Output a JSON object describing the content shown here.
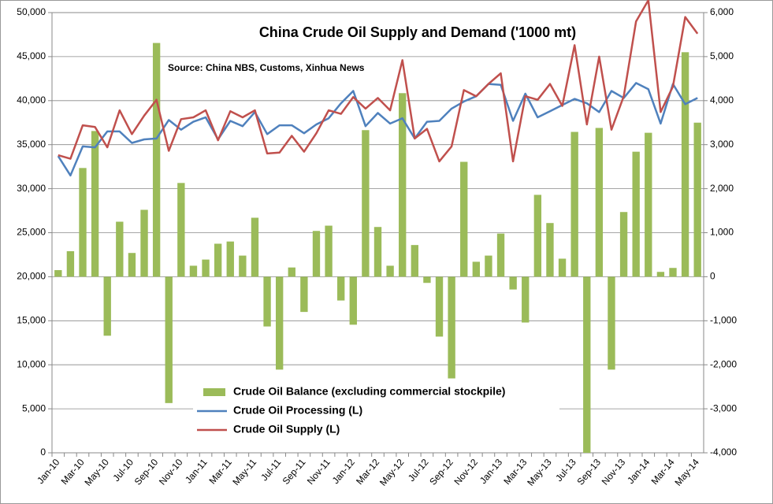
{
  "chart_data": {
    "type": "combo",
    "title": "China Crude Oil Supply and Demand ('1000 mt)",
    "annotation": "Source: China NBS, Customs, Xinhua News",
    "categories": [
      "Jan-10",
      null,
      "Mar-10",
      null,
      "May-10",
      null,
      "Jul-10",
      null,
      "Sep-10",
      null,
      "Nov-10",
      null,
      "Jan-11",
      null,
      "Mar-11",
      null,
      "May-11",
      null,
      "Jul-11",
      null,
      "Sep-11",
      null,
      "Nov-11",
      null,
      "Jan-12",
      null,
      "Mar-12",
      null,
      "May-12",
      null,
      "Jul-12",
      null,
      "Sep-12",
      null,
      "Nov-12",
      null,
      "Jan-13",
      null,
      "Mar-13",
      null,
      "May-13",
      null,
      "Jul-13",
      null,
      "Sep-13",
      null,
      "Nov-13",
      null,
      "Jan-14",
      null,
      "Mar-14",
      null,
      "May-14"
    ],
    "series": [
      {
        "name": "Crude Oil Balance (excluding commercial stockpile)",
        "type": "bar",
        "axis": "y2",
        "color": "#9bbb59",
        "values": [
          150,
          580,
          2470,
          3310,
          -1340,
          1250,
          540,
          1520,
          5310,
          -2870,
          2130,
          250,
          390,
          750,
          800,
          480,
          1340,
          -1130,
          -2110,
          210,
          -800,
          1040,
          1160,
          -540,
          -1090,
          3330,
          1130,
          250,
          4170,
          720,
          -140,
          -1360,
          -2310,
          2610,
          340,
          480,
          980,
          -290,
          -1040,
          1860,
          1220,
          410,
          3290,
          -4000,
          3380,
          -2110,
          1470,
          2840,
          3270,
          110,
          200,
          5100,
          3500
        ]
      },
      {
        "name": "Crude Oil Processing (L)",
        "type": "line",
        "color": "#4f81bd",
        "values": [
          33700,
          31500,
          34800,
          34700,
          36500,
          36500,
          35200,
          35600,
          35700,
          37800,
          36700,
          37600,
          38100,
          35600,
          37700,
          37100,
          38700,
          36200,
          37200,
          37200,
          36300,
          37300,
          38000,
          39700,
          41100,
          37100,
          38600,
          37400,
          38000,
          35700,
          37600,
          37700,
          39100,
          39900,
          40500,
          41900,
          41800,
          37700,
          40800,
          38100,
          38800,
          39500,
          40200,
          39700,
          38700,
          41100,
          40300,
          42000,
          41300,
          37400,
          41900,
          39600,
          40300
        ]
      },
      {
        "name": "Crude Oil Supply (L)",
        "type": "line",
        "color": "#c0504d",
        "values": [
          33800,
          33400,
          37200,
          37000,
          34700,
          38900,
          36200,
          38300,
          40100,
          34300,
          37900,
          38100,
          38900,
          35500,
          38800,
          38100,
          38900,
          34000,
          34100,
          36000,
          34200,
          36300,
          38900,
          38500,
          40400,
          39100,
          40300,
          38900,
          44600,
          35700,
          36800,
          33100,
          34800,
          41200,
          40500,
          41900,
          43100,
          33100,
          40500,
          40100,
          41900,
          39400,
          46300,
          37300,
          45000,
          36700,
          40500,
          49000,
          51400,
          38700,
          41600,
          49500,
          47600
        ]
      }
    ],
    "ylim": [
      0,
      50000
    ],
    "yticks": [
      0,
      {
        "value": 5000,
        "label": "5,000"
      },
      {
        "value": 10000,
        "label": "10,000"
      },
      {
        "value": 15000,
        "label": "15,000"
      },
      {
        "value": 20000,
        "label": "20,000"
      },
      {
        "value": 25000,
        "label": "25,000"
      },
      {
        "value": 30000,
        "label": "30,000"
      },
      {
        "value": 35000,
        "label": "35,000"
      },
      {
        "value": 40000,
        "label": "40,000"
      },
      {
        "value": 45000,
        "label": "45,000"
      },
      {
        "value": 50000,
        "label": "50,000"
      }
    ],
    "y2lim": [
      -4000,
      6000
    ],
    "y2ticks": [
      {
        "value": -4000,
        "label": "-4,000"
      },
      {
        "value": -3000,
        "label": "-3,000"
      },
      {
        "value": -2000,
        "label": "-2,000"
      },
      {
        "value": -1000,
        "label": "-1,000"
      },
      0,
      {
        "value": 1000,
        "label": "1,000"
      },
      {
        "value": 2000,
        "label": "2,000"
      },
      {
        "value": 3000,
        "label": "3,000"
      },
      {
        "value": 4000,
        "label": "4,000"
      },
      {
        "value": 5000,
        "label": "5,000"
      },
      {
        "value": 6000,
        "label": "6,000"
      }
    ],
    "grid": true,
    "legend": "bottom"
  }
}
